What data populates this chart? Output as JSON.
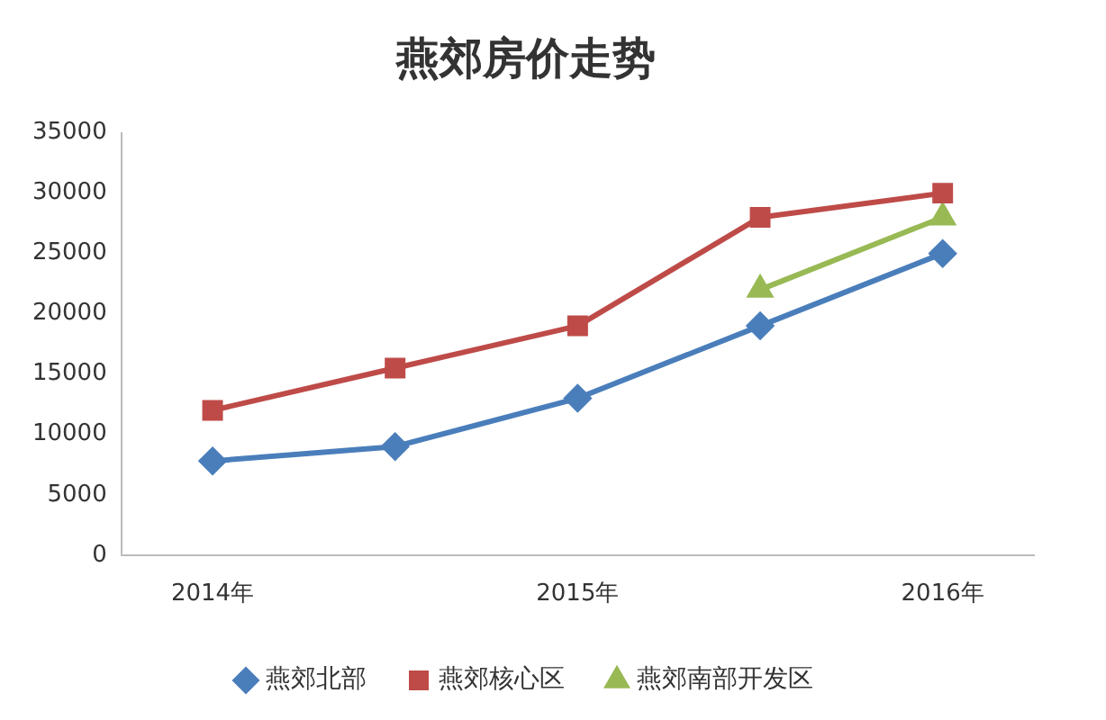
{
  "chart_data": {
    "type": "line",
    "title": "燕郊房价走势",
    "categories": [
      "2014年",
      null,
      "2015年",
      null,
      "2016年"
    ],
    "series": [
      {
        "name": "燕郊北部",
        "color": "#4a7ebb",
        "marker": "diamond",
        "values": [
          7800,
          9000,
          13000,
          19000,
          25000
        ]
      },
      {
        "name": "燕郊核心区",
        "color": "#be4b48",
        "marker": "square",
        "values": [
          12000,
          15500,
          19000,
          28000,
          30000
        ]
      },
      {
        "name": "燕郊南部开发区",
        "color": "#98b954",
        "marker": "triangle",
        "values": [
          null,
          null,
          null,
          22000,
          28000
        ]
      }
    ],
    "ylim": [
      0,
      35000
    ],
    "yticks": [
      0,
      5000,
      10000,
      15000,
      20000,
      25000,
      30000,
      35000
    ],
    "grid": false,
    "legend": "bottom"
  }
}
